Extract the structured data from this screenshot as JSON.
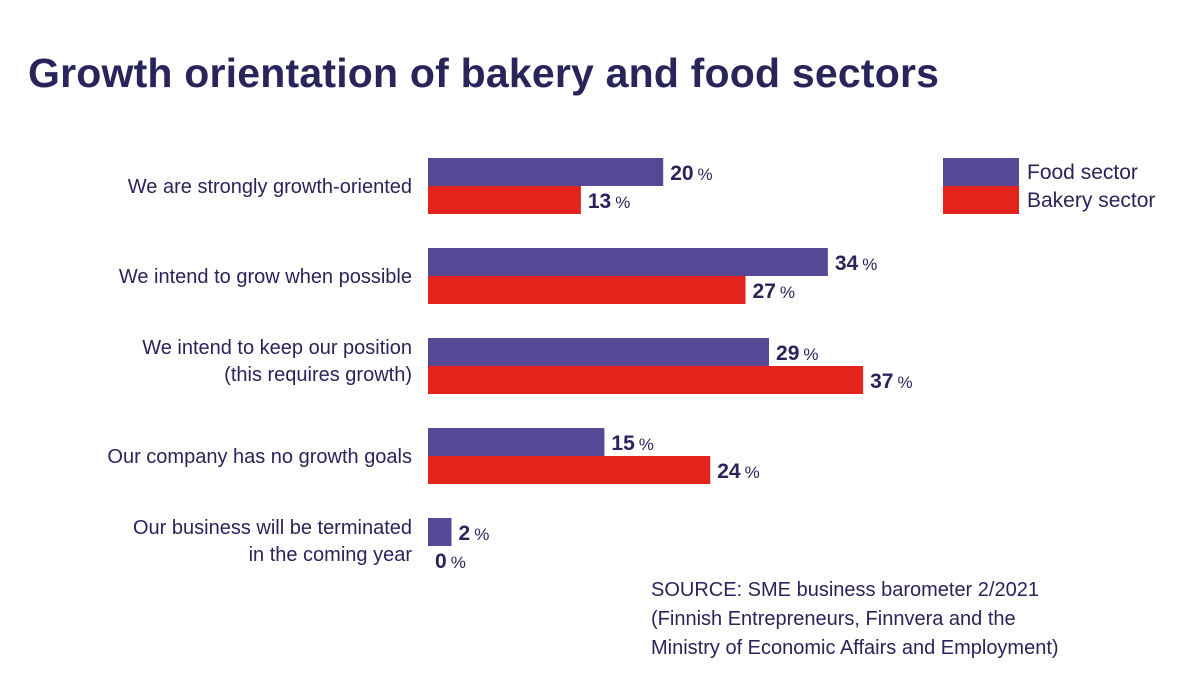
{
  "chart_data": {
    "type": "bar",
    "orientation": "horizontal",
    "title": "Growth orientation of bakery and food sectors",
    "categories": [
      [
        "We are strongly growth-oriented"
      ],
      [
        "We intend to grow when possible"
      ],
      [
        "We intend to keep our position",
        "(this requires growth)"
      ],
      [
        "Our company has no growth goals"
      ],
      [
        "Our business will be terminated",
        "in the coming year"
      ]
    ],
    "series": [
      {
        "name": "Food sector",
        "color": "#574895",
        "values": [
          20,
          34,
          29,
          15,
          2
        ]
      },
      {
        "name": "Bakery sector",
        "color": "#e4231c",
        "values": [
          13,
          27,
          37,
          24,
          0
        ]
      }
    ],
    "unit": "%",
    "xlim": [
      0,
      40
    ],
    "grid": false,
    "legend_position": "top-right"
  },
  "source": [
    "SOURCE: SME business barometer 2/2021",
    "(Finnish Entrepreneurs, Finnvera and the",
    "Ministry of Economic Affairs and Employment)"
  ]
}
